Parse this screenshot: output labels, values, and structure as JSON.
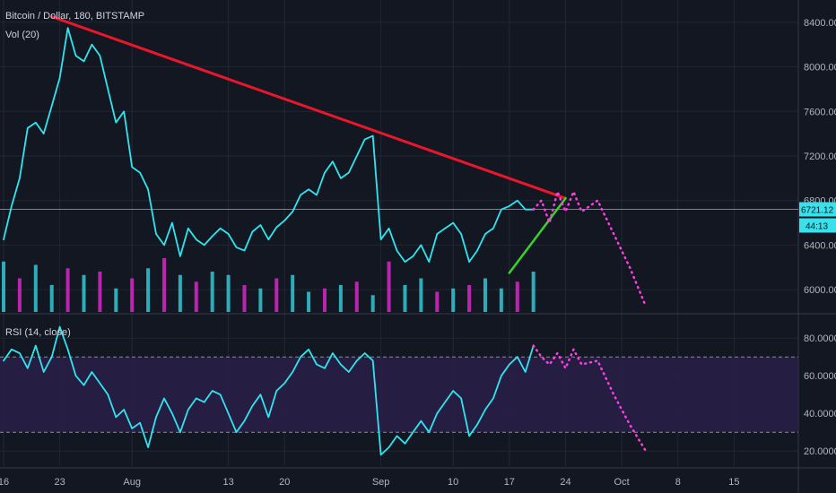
{
  "colors": {
    "background": "#131722",
    "grid": "#232735",
    "price_line": "#2ee6f0",
    "trend_resistance": "#e8172b",
    "trend_support": "#3bd12c",
    "projection": "#ff3de0",
    "vol_up": "#33d3e0",
    "vol_down": "#e628d5",
    "rsi_band": "#2a1e48",
    "price_badge": "#39e1ea"
  },
  "main_chart": {
    "title": "Bitcoin / Dollar, 180, BITSTAMP",
    "volume_label": "Vol (20)",
    "last_price": "6721.12",
    "countdown": "44:13"
  },
  "rsi_panel": {
    "label": "RSI (14, close)"
  },
  "chart_data": [
    {
      "type": "line",
      "title": "Bitcoin / Dollar, 180, BITSTAMP",
      "ylim": [
        5800,
        8600
      ],
      "y_ticks": [
        "6000.00",
        "6400.00",
        "6800.00",
        "7200.00",
        "7600.00",
        "8000.00",
        "8400.00"
      ],
      "x_ticks": [
        "16",
        "23",
        "Aug",
        "13",
        "20",
        "Sep",
        "10",
        "17",
        "24",
        "Oct",
        "8",
        "15"
      ],
      "x_tick_days": [
        0,
        7,
        16,
        28,
        35,
        47,
        56,
        63,
        70,
        77,
        84,
        91
      ],
      "xlim_days": [
        0,
        99
      ],
      "series": [
        {
          "role": "price",
          "x_days": [
            0,
            1,
            2,
            3,
            4,
            5,
            6,
            7,
            8,
            9,
            10,
            11,
            12,
            13,
            14,
            15,
            16,
            17,
            18,
            19,
            20,
            21,
            22,
            23,
            24,
            25,
            26,
            27,
            28,
            29,
            30,
            31,
            32,
            33,
            34,
            35,
            36,
            37,
            38,
            39,
            40,
            41,
            42,
            43,
            44,
            45,
            46,
            47,
            48,
            49,
            50,
            51,
            52,
            53,
            54,
            55,
            56,
            57,
            58,
            59,
            60,
            61,
            62,
            63,
            64,
            65,
            66
          ],
          "values": [
            6450,
            6750,
            7000,
            7450,
            7500,
            7400,
            7650,
            7900,
            8350,
            8100,
            8050,
            8200,
            8100,
            7800,
            7500,
            7600,
            7100,
            7050,
            6900,
            6500,
            6400,
            6600,
            6300,
            6550,
            6450,
            6400,
            6480,
            6550,
            6500,
            6380,
            6350,
            6520,
            6580,
            6450,
            6560,
            6620,
            6700,
            6850,
            6900,
            6850,
            7050,
            7150,
            7000,
            7050,
            7200,
            7350,
            7380,
            6450,
            6550,
            6350,
            6250,
            6300,
            6400,
            6250,
            6500,
            6550,
            6600,
            6500,
            6250,
            6350,
            6500,
            6550,
            6720,
            6750,
            6800,
            6720,
            6720
          ]
        },
        {
          "role": "resistance_trendline",
          "x_days": [
            6,
            70
          ],
          "values": [
            8450,
            6820
          ]
        },
        {
          "role": "support_trendline",
          "x_days": [
            63,
            70
          ],
          "values": [
            6150,
            6820
          ]
        },
        {
          "role": "projection",
          "x_days": [
            66,
            67,
            68,
            69,
            70,
            71,
            72,
            74,
            76,
            78,
            80
          ],
          "values": [
            6720,
            6800,
            6600,
            6880,
            6700,
            6880,
            6700,
            6800,
            6500,
            6200,
            5850
          ]
        }
      ],
      "volume": {
        "x_days": [
          0,
          2,
          4,
          6,
          8,
          10,
          12,
          14,
          16,
          18,
          20,
          22,
          24,
          26,
          28,
          30,
          32,
          34,
          36,
          38,
          40,
          42,
          44,
          46,
          48,
          50,
          52,
          54,
          56,
          58,
          60,
          62,
          64,
          66
        ],
        "values": [
          30,
          20,
          28,
          16,
          26,
          22,
          24,
          14,
          20,
          26,
          32,
          22,
          18,
          24,
          22,
          16,
          14,
          20,
          22,
          12,
          14,
          16,
          18,
          10,
          30,
          16,
          20,
          12,
          14,
          16,
          20,
          14,
          18,
          24
        ],
        "up": [
          true,
          false,
          true,
          true,
          false,
          true,
          false,
          true,
          false,
          true,
          false,
          true,
          false,
          true,
          true,
          false,
          true,
          false,
          true,
          true,
          false,
          true,
          false,
          true,
          false,
          true,
          true,
          false,
          true,
          false,
          true,
          true,
          false,
          true
        ]
      }
    },
    {
      "type": "line",
      "title": "RSI (14, close)",
      "ylim": [
        12,
        92
      ],
      "y_ticks": [
        "20.0000",
        "40.0000",
        "60.0000",
        "80.0000"
      ],
      "bands": [
        30,
        70
      ],
      "series": [
        {
          "role": "rsi",
          "x_days": [
            0,
            1,
            2,
            3,
            4,
            5,
            6,
            7,
            8,
            9,
            10,
            11,
            12,
            13,
            14,
            15,
            16,
            17,
            18,
            19,
            20,
            21,
            22,
            23,
            24,
            25,
            26,
            27,
            28,
            29,
            30,
            31,
            32,
            33,
            34,
            35,
            36,
            37,
            38,
            39,
            40,
            41,
            42,
            43,
            44,
            45,
            46,
            47,
            48,
            49,
            50,
            51,
            52,
            53,
            54,
            55,
            56,
            57,
            58,
            59,
            60,
            61,
            62,
            63,
            64,
            65,
            66
          ],
          "values": [
            68,
            74,
            72,
            64,
            76,
            62,
            70,
            86,
            74,
            60,
            55,
            62,
            56,
            50,
            38,
            42,
            32,
            35,
            22,
            38,
            48,
            40,
            30,
            42,
            48,
            46,
            52,
            50,
            40,
            30,
            36,
            44,
            50,
            38,
            52,
            56,
            62,
            70,
            74,
            66,
            64,
            72,
            66,
            62,
            68,
            72,
            68,
            18,
            22,
            28,
            24,
            30,
            36,
            30,
            40,
            46,
            52,
            48,
            28,
            34,
            42,
            48,
            60,
            66,
            70,
            62,
            76
          ]
        },
        {
          "role": "projection",
          "x_days": [
            66,
            67,
            68,
            69,
            70,
            71,
            72,
            74,
            76,
            78,
            80
          ],
          "values": [
            76,
            70,
            66,
            72,
            64,
            74,
            66,
            68,
            50,
            34,
            20
          ]
        }
      ]
    }
  ]
}
